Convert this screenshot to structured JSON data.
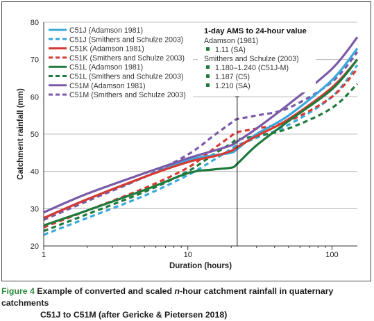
{
  "chart_data": {
    "type": "line",
    "xscale": "log",
    "xlabel": "Duration (hours)",
    "ylabel": "Catchment rainfall (mm)",
    "xlim": [
      1,
      150
    ],
    "ylim": [
      20,
      80
    ],
    "xticks": [
      1,
      10,
      100
    ],
    "yticks": [
      20,
      30,
      40,
      50,
      60,
      70,
      80
    ],
    "xtick_labels": [
      "1",
      "10",
      "100"
    ],
    "ytick_labels": [
      "20",
      "30",
      "40",
      "50",
      "60",
      "70",
      "80"
    ],
    "grid": "horizontal",
    "reference_line": {
      "x": 22,
      "y_range": [
        20,
        60
      ],
      "style": "vertical line with whiskers"
    },
    "legend_location": "top-left",
    "series": [
      {
        "name": "C51J (Adamson 1981)",
        "color": "#3aa8dd",
        "dash": "solid",
        "x": [
          1,
          2,
          5,
          10,
          15,
          20,
          22,
          30,
          50,
          100,
          150
        ],
        "y": [
          27.5,
          32.5,
          38.5,
          43.0,
          44.3,
          45.0,
          46.0,
          50.0,
          55.0,
          64.5,
          73.0
        ]
      },
      {
        "name": "C51J (Smithers and Schulze 2003)",
        "color": "#3aa8dd",
        "dash": "dashed",
        "x": [
          1,
          2,
          5,
          10,
          15,
          20,
          22,
          30,
          50,
          100,
          150
        ],
        "y": [
          23.0,
          27.5,
          33.5,
          39.0,
          43.0,
          46.0,
          47.0,
          49.0,
          52.5,
          60.0,
          68.5
        ]
      },
      {
        "name": "C51K (Adamson 1981)",
        "color": "#d63a32",
        "dash": "solid",
        "x": [
          1,
          2,
          5,
          10,
          15,
          20,
          22,
          30,
          50,
          100,
          150
        ],
        "y": [
          27.5,
          32.5,
          38.5,
          42.5,
          44.0,
          45.5,
          46.5,
          49.5,
          54.0,
          62.5,
          70.0
        ]
      },
      {
        "name": "C51K (Smithers and Schulze 2003)",
        "color": "#d63a32",
        "dash": "dashed",
        "x": [
          1,
          2,
          5,
          10,
          15,
          20,
          22,
          30,
          50,
          100,
          150
        ],
        "y": [
          25.0,
          29.5,
          35.5,
          41.0,
          46.0,
          49.5,
          50.5,
          51.5,
          53.5,
          60.0,
          67.5
        ]
      },
      {
        "name": "C51L (Adamson 1981)",
        "color": "#1f7a3c",
        "dash": "solid",
        "x": [
          1,
          2,
          5,
          10,
          15,
          20,
          22,
          30,
          50,
          100,
          150
        ],
        "y": [
          25.5,
          29.5,
          35.0,
          39.5,
          40.5,
          41.0,
          42.0,
          47.0,
          53.5,
          62.0,
          70.0
        ]
      },
      {
        "name": "C51L (Smithers and Schulze 2003)",
        "color": "#1f7a3c",
        "dash": "dashed",
        "x": [
          1,
          2,
          5,
          10,
          15,
          20,
          22,
          30,
          50,
          100,
          150
        ],
        "y": [
          24.0,
          28.5,
          34.5,
          40.0,
          44.5,
          47.5,
          48.5,
          49.5,
          51.5,
          57.0,
          63.5
        ]
      },
      {
        "name": "C51M (Adamson 1981)",
        "color": "#7a5aa8",
        "dash": "solid",
        "x": [
          1,
          2,
          5,
          10,
          15,
          20,
          22,
          30,
          50,
          100,
          150
        ],
        "y": [
          29.0,
          34.0,
          39.5,
          43.5,
          45.5,
          47.0,
          48.0,
          51.5,
          58.0,
          67.5,
          76.0
        ]
      },
      {
        "name": "C51M (Smithers and Schulze 2003)",
        "color": "#7a5aa8",
        "dash": "dashed",
        "x": [
          1,
          2,
          5,
          10,
          15,
          20,
          22,
          30,
          50,
          100,
          150
        ],
        "y": [
          27.0,
          32.0,
          38.5,
          44.5,
          49.5,
          53.0,
          54.0,
          55.0,
          57.0,
          64.0,
          72.0
        ]
      }
    ],
    "ams_legend": {
      "title": "1-day AMS to 24-hour value",
      "groups": [
        {
          "heading": "Adamson (1981)",
          "entries": [
            "1.11 (SA)"
          ]
        },
        {
          "heading": "Smithers and Schulze (2003)",
          "entries": [
            "1.180–1.240 (C51J-M)",
            "1.187 (C5)",
            "1.210 (SA)"
          ]
        }
      ],
      "marker_color": "#1f7a3c"
    }
  },
  "caption": {
    "figure_label": "Figure 4",
    "text_before": " Example of converted and scaled ",
    "text_italic": "n",
    "text_after": "-hour catchment rainfall in quaternary catchments",
    "line2": "C51J to C51M (after Gericke & Pietersen 2018)"
  }
}
